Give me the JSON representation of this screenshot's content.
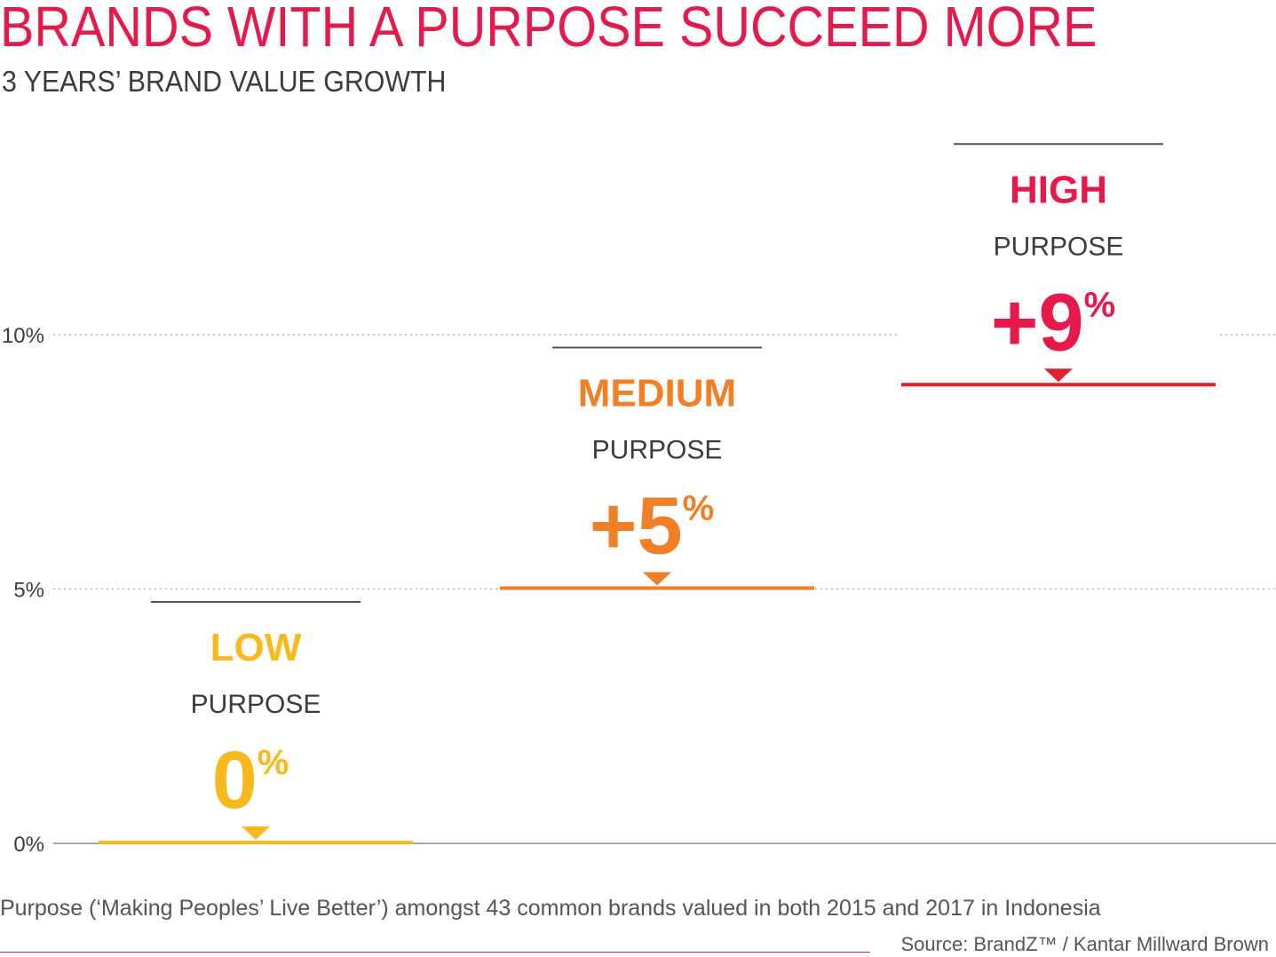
{
  "title": "BRANDS WITH A PURPOSE SUCCEED MORE",
  "subtitle": "3 YEARS’ BRAND VALUE GROWTH",
  "footnote": "Purpose (‘Making Peoples’ Live Better’) amongst 43 common brands valued in both 2015 and 2017 in Indonesia",
  "source": "Source: BrandZ™ / Kantar Millward Brown",
  "colors": {
    "title": "#e6194b",
    "low": "#f7b91b",
    "medium": "#f07f25",
    "high": "#e6194b",
    "high_line": "#e0212e",
    "grid": "#b0b0b0",
    "axis": "#888888",
    "label_text": "#3c3c3c"
  },
  "chart_data": {
    "type": "bar",
    "title": "BRANDS WITH A PURPOSE SUCCEED MORE",
    "subtitle": "3 YEARS’ BRAND VALUE GROWTH",
    "categories": [
      "LOW",
      "MEDIUM",
      "HIGH"
    ],
    "category_sublabel": "PURPOSE",
    "values": [
      0,
      5,
      9
    ],
    "value_labels": [
      "0",
      "+5",
      "+9"
    ],
    "value_suffix": "%",
    "y_ticks": [
      0,
      5,
      10
    ],
    "y_tick_labels": [
      "0%",
      "5%",
      "10%"
    ],
    "ylim": [
      0,
      10
    ],
    "grid": true,
    "xlabel": "",
    "ylabel": ""
  }
}
